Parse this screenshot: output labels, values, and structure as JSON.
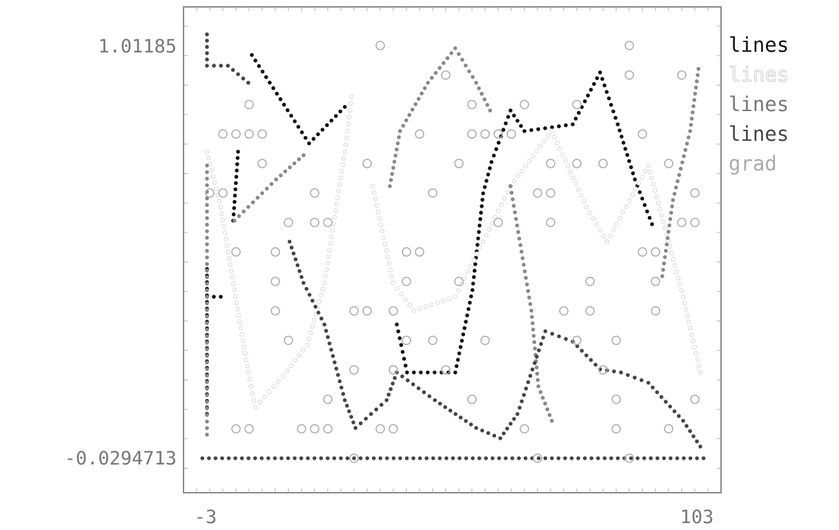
{
  "chart_data": {
    "type": "scatter",
    "title": "",
    "xlabel": "",
    "ylabel": "",
    "xlim": [
      -3,
      103
    ],
    "ylim": [
      -0.0294713,
      1.01185
    ],
    "x_tick_labels": [
      "-3",
      "103"
    ],
    "y_tick_labels": [
      "1.01185",
      "-0.0294713"
    ],
    "grid": false,
    "legend_placement": "right",
    "legend": [
      {
        "label": "lines",
        "color": "#111111"
      },
      {
        "label": "lines",
        "color": "#dddddd"
      },
      {
        "label": "lines",
        "color": "#888888"
      },
      {
        "label": "lines",
        "color": "#444444"
      },
      {
        "label": "grad",
        "color": "#aaaaaa"
      }
    ],
    "series": [
      {
        "name": "lines",
        "color": "#111111",
        "marker": "filled-dot",
        "segments": [
          [
            [
              6.66,
              0.988
            ],
            [
              19.0,
              0.765
            ],
            [
              26.7,
              0.857
            ]
          ],
          [
            [
              37.9,
              0.308
            ],
            [
              40.1,
              0.187
            ],
            [
              50.5,
              0.187
            ],
            [
              54.2,
              0.395
            ],
            [
              56.5,
              0.639
            ],
            [
              58.3,
              0.718
            ],
            [
              62.4,
              0.848
            ],
            [
              65.4,
              0.796
            ],
            [
              75.8,
              0.813
            ],
            [
              81.7,
              0.944
            ],
            [
              85.5,
              0.813
            ],
            [
              89.2,
              0.674
            ],
            [
              92.9,
              0.561
            ]
          ],
          [
            [
              -3,
              0.448
            ],
            [
              -3,
              0.082
            ]
          ],
          [
            [
              -3,
              0.378
            ],
            [
              -0.03,
              0.378
            ]
          ],
          [
            [
              3.7,
              0.744
            ],
            [
              2.65,
              0.57
            ]
          ]
        ]
      },
      {
        "name": "lines",
        "color": "#dddddd",
        "marker": "hollow-dot",
        "segments": [
          [
            [
              -3,
              0.744
            ],
            [
              -0.03,
              0.604
            ],
            [
              2.9,
              0.395
            ],
            [
              5.9,
              0.187
            ],
            [
              7.4,
              0.099
            ],
            [
              13.4,
              0.178
            ],
            [
              18.6,
              0.256
            ],
            [
              22.3,
              0.413
            ],
            [
              26.7,
              0.744
            ],
            [
              28.2,
              0.883
            ]
          ],
          [
            [
              32.7,
              0.657
            ],
            [
              37.1,
              0.413
            ],
            [
              41.6,
              0.343
            ],
            [
              50.5,
              0.378
            ],
            [
              56.5,
              0.517
            ],
            [
              62.4,
              0.657
            ],
            [
              71.3,
              0.796
            ],
            [
              78.8,
              0.604
            ],
            [
              83.2,
              0.517
            ],
            [
              92.1,
              0.709
            ],
            [
              99.6,
              0.378
            ],
            [
              103.3,
              0.187
            ]
          ]
        ]
      },
      {
        "name": "lines",
        "color": "#888888",
        "marker": "filled-dot",
        "segments": [
          [
            [
              -3,
              0.709
            ],
            [
              -3,
              0.03
            ]
          ],
          [
            [
              2.9,
              0.57
            ],
            [
              11.9,
              0.674
            ],
            [
              17.8,
              0.735
            ]
          ],
          [
            [
              36.4,
              0.657
            ],
            [
              38.6,
              0.796
            ],
            [
              44.6,
              0.918
            ],
            [
              50.5,
              1.005
            ],
            [
              55.0,
              0.918
            ],
            [
              58.0,
              0.848
            ]
          ],
          [
            [
              62.4,
              0.657
            ],
            [
              66.9,
              0.343
            ],
            [
              68.4,
              0.152
            ],
            [
              71.3,
              0.065
            ]
          ],
          [
            [
              95.1,
              0.43
            ],
            [
              97.4,
              0.622
            ],
            [
              101.1,
              0.796
            ],
            [
              102.9,
              0.953
            ]
          ]
        ]
      },
      {
        "name": "lines",
        "color": "#444444",
        "marker": "filled-dot",
        "segments": [
          [
            [
              -3,
              1.04
            ],
            [
              -3,
              0.961
            ],
            [
              1.5,
              0.961
            ],
            [
              5.9,
              0.918
            ]
          ],
          [
            [
              14.8,
              0.517
            ],
            [
              17.8,
              0.413
            ],
            [
              22.3,
              0.308
            ],
            [
              26.7,
              0.117
            ],
            [
              29.0,
              0.047
            ],
            [
              35.7,
              0.117
            ],
            [
              37.9,
              0.187
            ],
            [
              46.1,
              0.117
            ],
            [
              55.0,
              0.047
            ],
            [
              60.2,
              0.021
            ],
            [
              63.9,
              0.082
            ],
            [
              69.9,
              0.291
            ],
            [
              75.8,
              0.265
            ],
            [
              81.7,
              0.195
            ],
            [
              86.2,
              0.187
            ],
            [
              92.1,
              0.161
            ],
            [
              99.6,
              0.065
            ],
            [
              103.3,
              0.0
            ]
          ],
          [
            [
              -4,
              -0.0294713
            ],
            [
              104,
              -0.0294713
            ]
          ]
        ]
      },
      {
        "name": "grad",
        "color": "#aaaaaa",
        "marker": "hollow-circle",
        "points": [
          [
            34.33,
            1.0119
          ],
          [
            88,
            1.0119
          ],
          [
            48.45,
            0.9374
          ],
          [
            88,
            0.9374
          ],
          [
            99.3,
            0.9374
          ],
          [
            6.08,
            0.863
          ],
          [
            54.1,
            0.863
          ],
          [
            65.4,
            0.863
          ],
          [
            76.7,
            0.863
          ],
          [
            0.43,
            0.7886
          ],
          [
            3.25,
            0.7886
          ],
          [
            6.08,
            0.7886
          ],
          [
            8.9,
            0.7886
          ],
          [
            42.8,
            0.7886
          ],
          [
            54.1,
            0.7886
          ],
          [
            56.93,
            0.7886
          ],
          [
            59.75,
            0.7886
          ],
          [
            62.58,
            0.7886
          ],
          [
            90.83,
            0.7886
          ],
          [
            8.9,
            0.7142
          ],
          [
            31.5,
            0.7142
          ],
          [
            51.28,
            0.7142
          ],
          [
            71.05,
            0.7142
          ],
          [
            76.7,
            0.7142
          ],
          [
            82.35,
            0.7142
          ],
          [
            96.48,
            0.7142
          ],
          [
            -2.4,
            0.6398
          ],
          [
            0.43,
            0.6398
          ],
          [
            20.2,
            0.6398
          ],
          [
            45.63,
            0.6398
          ],
          [
            68.23,
            0.6398
          ],
          [
            71.05,
            0.6398
          ],
          [
            102.13,
            0.6398
          ],
          [
            14.55,
            0.5654
          ],
          [
            20.2,
            0.5654
          ],
          [
            23.03,
            0.5654
          ],
          [
            59.75,
            0.5654
          ],
          [
            71.05,
            0.5654
          ],
          [
            99.3,
            0.5654
          ],
          [
            102.13,
            0.5654
          ],
          [
            3.25,
            0.4911
          ],
          [
            11.73,
            0.4911
          ],
          [
            39.98,
            0.4911
          ],
          [
            42.8,
            0.4911
          ],
          [
            90.83,
            0.4911
          ],
          [
            93.65,
            0.4911
          ],
          [
            11.73,
            0.4167
          ],
          [
            39.98,
            0.4167
          ],
          [
            51.28,
            0.4167
          ],
          [
            79.53,
            0.4167
          ],
          [
            93.65,
            0.4167
          ],
          [
            11.73,
            0.3423
          ],
          [
            28.68,
            0.3423
          ],
          [
            31.5,
            0.3423
          ],
          [
            37.15,
            0.3423
          ],
          [
            73.88,
            0.3423
          ],
          [
            79.53,
            0.3423
          ],
          [
            93.65,
            0.3423
          ],
          [
            14.55,
            0.2679
          ],
          [
            39.98,
            0.2679
          ],
          [
            45.63,
            0.2679
          ],
          [
            56.93,
            0.2679
          ],
          [
            76.7,
            0.2679
          ],
          [
            85.18,
            0.2679
          ],
          [
            28.68,
            0.1935
          ],
          [
            37.15,
            0.1935
          ],
          [
            48.45,
            0.1935
          ],
          [
            82.35,
            0.1935
          ],
          [
            23.03,
            0.1191
          ],
          [
            54.1,
            0.1191
          ],
          [
            85.18,
            0.1191
          ],
          [
            102.13,
            0.1191
          ],
          [
            3.25,
            0.0447
          ],
          [
            6.08,
            0.0447
          ],
          [
            17.38,
            0.0447
          ],
          [
            20.2,
            0.0447
          ],
          [
            23.03,
            0.0447
          ],
          [
            34.33,
            0.0447
          ],
          [
            37.15,
            0.0447
          ],
          [
            65.4,
            0.0447
          ],
          [
            85.18,
            0.0447
          ],
          [
            96.48,
            0.0447
          ],
          [
            28.68,
            -0.0295
          ],
          [
            68.23,
            -0.0295
          ],
          [
            88,
            -0.0295
          ]
        ]
      }
    ]
  }
}
